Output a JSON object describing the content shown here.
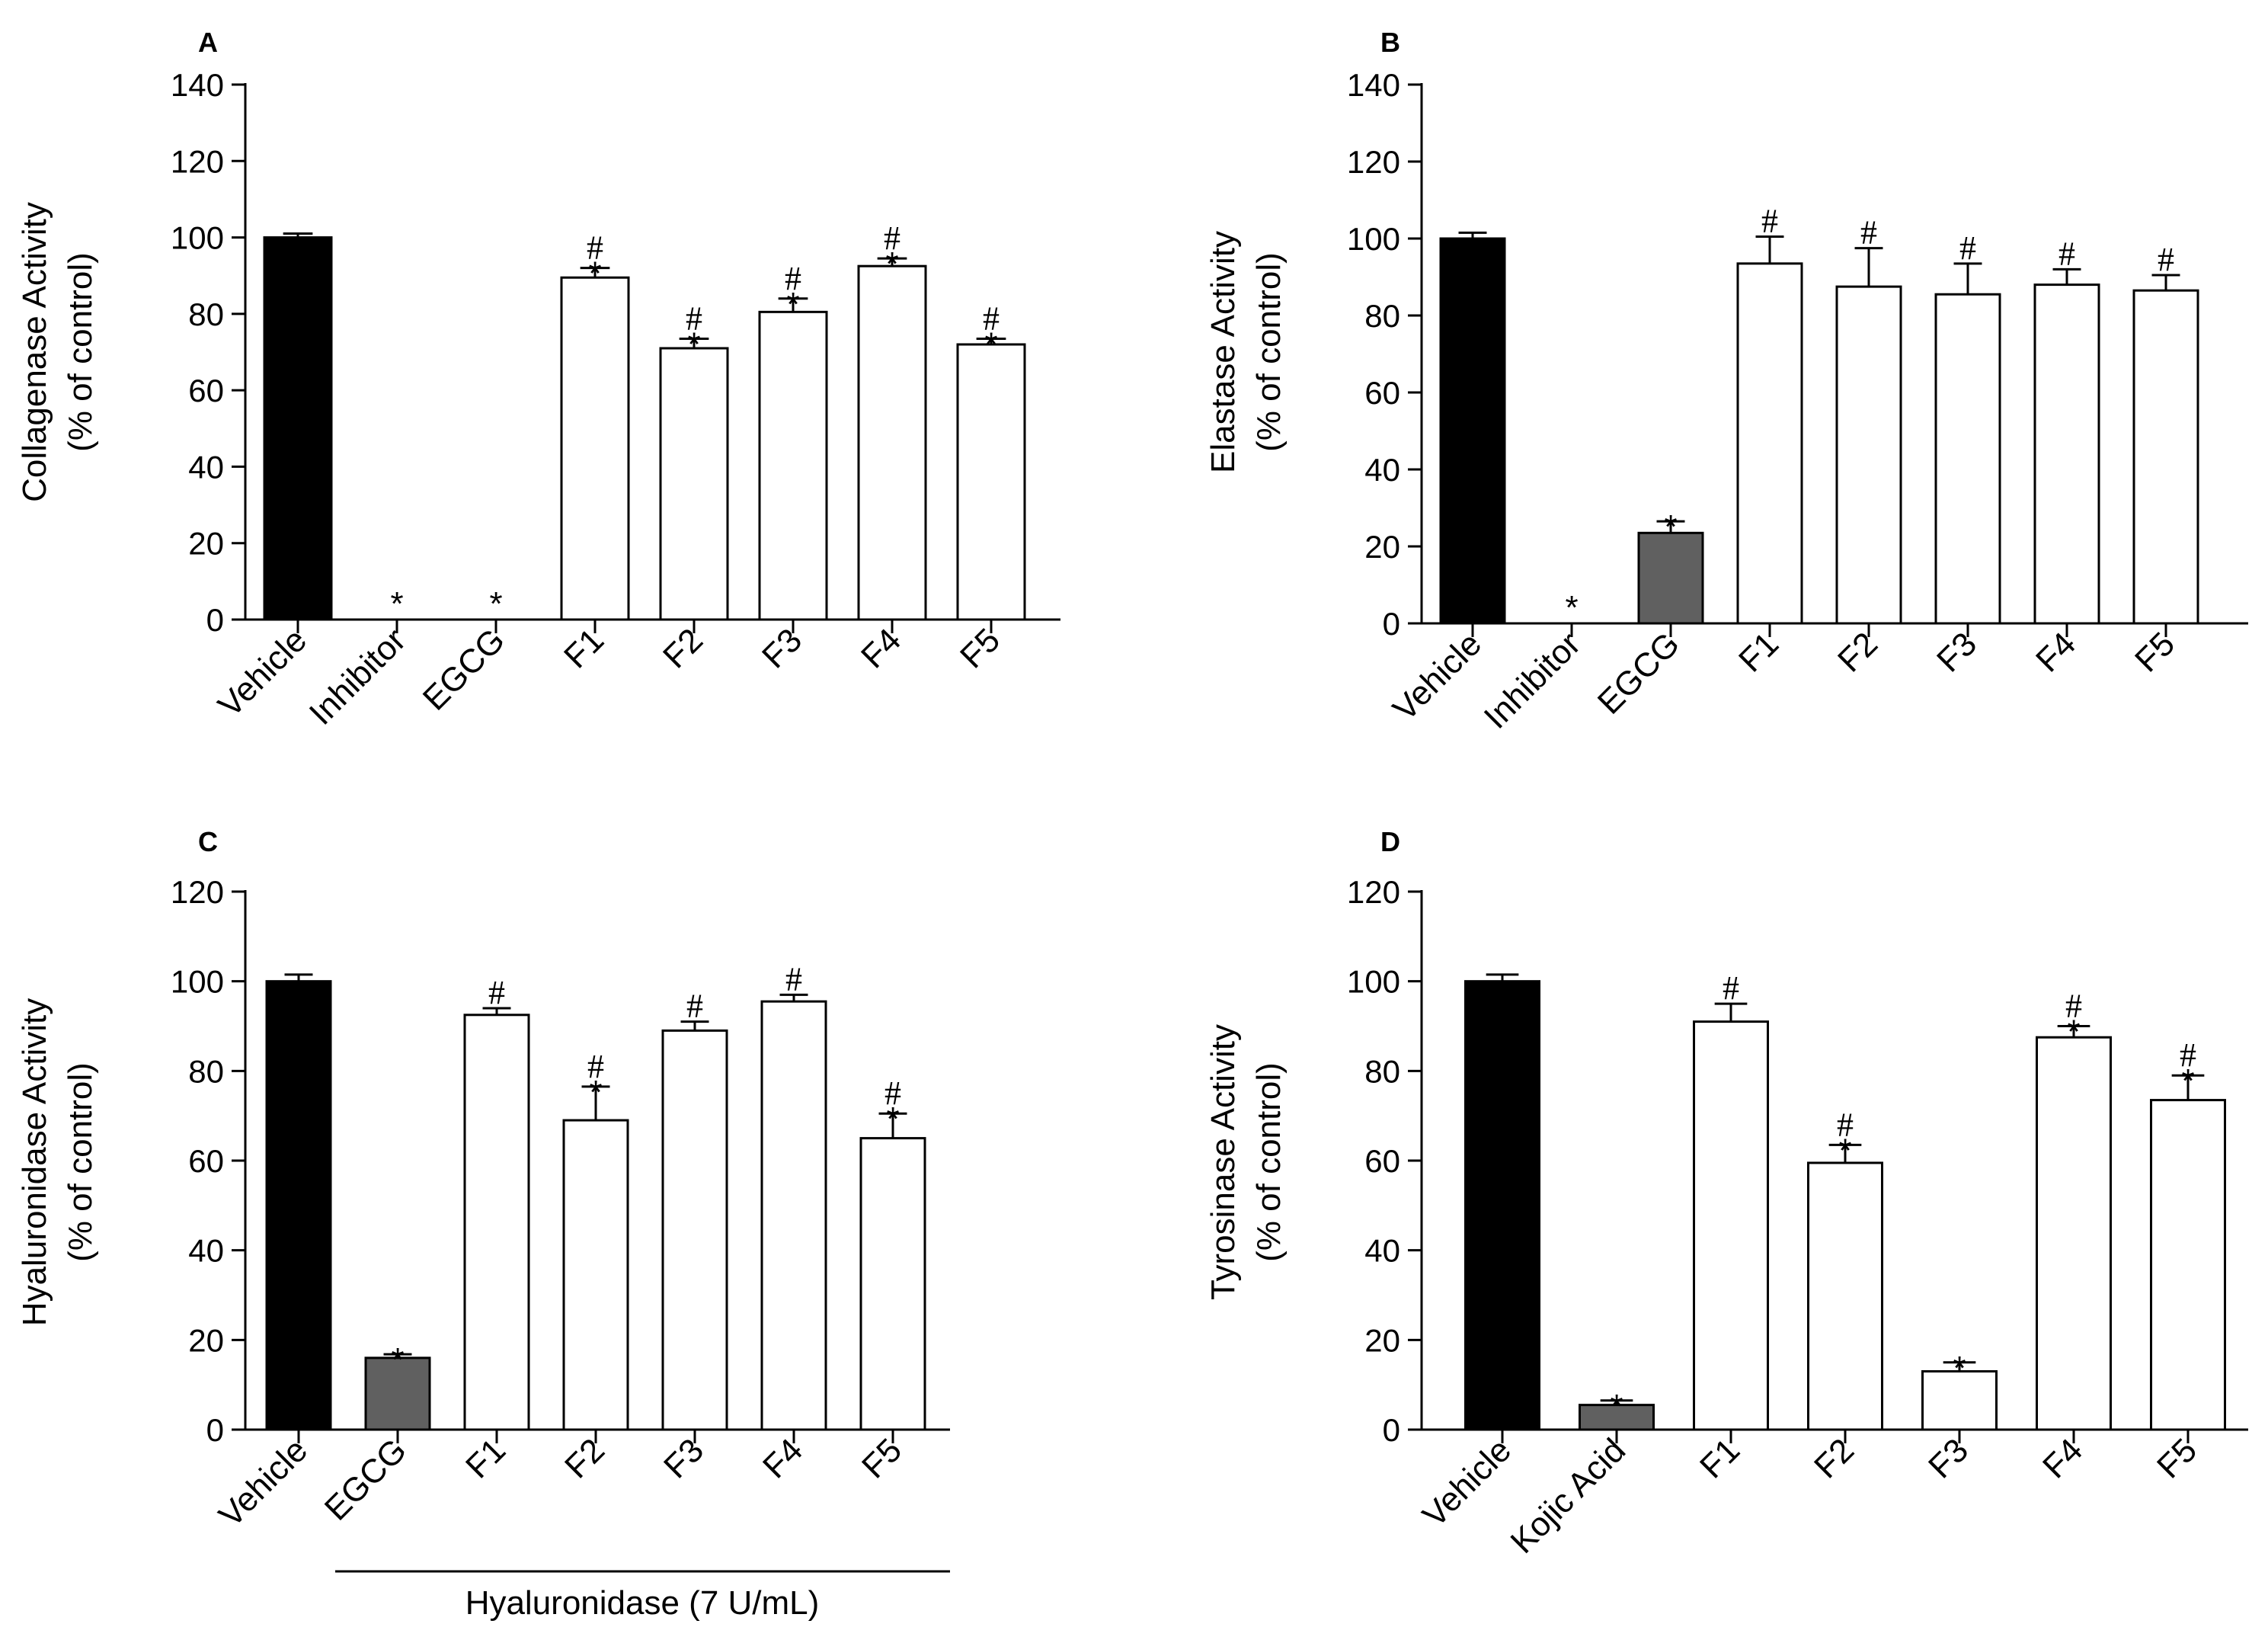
{
  "chart_data": [
    {
      "panel": "A",
      "type": "bar",
      "ylabel": "Collagenase Activity",
      "ylabel2": "(% of control)",
      "ylim": [
        0,
        140
      ],
      "yticks": [
        0,
        20,
        40,
        60,
        80,
        100,
        120,
        140
      ],
      "bracket_label": "",
      "bars": [
        {
          "category": "Vehicle",
          "value": 100,
          "error": 1,
          "fill": "black",
          "star": false,
          "hash": false
        },
        {
          "category": "Inhibitor",
          "value": 0,
          "error": 0,
          "fill": "white",
          "star": true,
          "hash": false
        },
        {
          "category": "EGCG",
          "value": 0,
          "error": 0,
          "fill": "white",
          "star": true,
          "hash": false
        },
        {
          "category": "F1",
          "value": 89.5,
          "error": 2.5,
          "fill": "white",
          "star": true,
          "hash": true
        },
        {
          "category": "F2",
          "value": 71,
          "error": 2.5,
          "fill": "white",
          "star": true,
          "hash": true
        },
        {
          "category": "F3",
          "value": 80.5,
          "error": 3.5,
          "fill": "white",
          "star": true,
          "hash": true
        },
        {
          "category": "F4",
          "value": 92.5,
          "error": 2,
          "fill": "white",
          "star": true,
          "hash": true
        },
        {
          "category": "F5",
          "value": 72,
          "error": 1.5,
          "fill": "white",
          "star": true,
          "hash": true
        }
      ]
    },
    {
      "panel": "B",
      "type": "bar",
      "ylabel": "Elastase Activity",
      "ylabel2": "(% of control)",
      "ylim": [
        0,
        140
      ],
      "yticks": [
        0,
        20,
        40,
        60,
        80,
        100,
        120,
        140
      ],
      "bracket_label": "",
      "bars": [
        {
          "category": "Vehicle",
          "value": 100,
          "error": 1.5,
          "fill": "black",
          "star": false,
          "hash": false
        },
        {
          "category": "Inhibitor",
          "value": 0,
          "error": 0,
          "fill": "white",
          "star": true,
          "hash": false
        },
        {
          "category": "EGCG",
          "value": 23.5,
          "error": 3,
          "fill": "gray",
          "star": true,
          "hash": false
        },
        {
          "category": "F1",
          "value": 93.5,
          "error": 7,
          "fill": "white",
          "star": false,
          "hash": true
        },
        {
          "category": "F2",
          "value": 87.5,
          "error": 10,
          "fill": "white",
          "star": false,
          "hash": true
        },
        {
          "category": "F3",
          "value": 85.5,
          "error": 8,
          "fill": "white",
          "star": false,
          "hash": true
        },
        {
          "category": "F4",
          "value": 88,
          "error": 4,
          "fill": "white",
          "star": false,
          "hash": true
        },
        {
          "category": "F5",
          "value": 86.5,
          "error": 4,
          "fill": "white",
          "star": false,
          "hash": true
        }
      ]
    },
    {
      "panel": "C",
      "type": "bar",
      "ylabel": "Hyaluronidase Activity",
      "ylabel2": "(% of control)",
      "ylim": [
        0,
        120
      ],
      "yticks": [
        0,
        20,
        40,
        60,
        80,
        100,
        120
      ],
      "bracket_label": "Hyaluronidase (7 U/mL)",
      "bars": [
        {
          "category": "Vehicle",
          "value": 100,
          "error": 1.5,
          "fill": "black",
          "star": false,
          "hash": false
        },
        {
          "category": "EGCG",
          "value": 16,
          "error": 0.8,
          "fill": "gray",
          "star": true,
          "hash": false
        },
        {
          "category": "F1",
          "value": 92.5,
          "error": 1.5,
          "fill": "white",
          "star": false,
          "hash": true
        },
        {
          "category": "F2",
          "value": 69,
          "error": 7.5,
          "fill": "white",
          "star": true,
          "hash": true
        },
        {
          "category": "F3",
          "value": 89,
          "error": 2,
          "fill": "white",
          "star": false,
          "hash": true
        },
        {
          "category": "F4",
          "value": 95.5,
          "error": 1.5,
          "fill": "white",
          "star": false,
          "hash": true
        },
        {
          "category": "F5",
          "value": 65,
          "error": 5.5,
          "fill": "white",
          "star": true,
          "hash": true
        }
      ]
    },
    {
      "panel": "D",
      "type": "bar",
      "ylabel": "Tyrosinase Activity",
      "ylabel2": "(% of control)",
      "ylim": [
        0,
        120
      ],
      "yticks": [
        0,
        20,
        40,
        60,
        80,
        100,
        120
      ],
      "bracket_label": "",
      "bars": [
        {
          "category": "Vehicle",
          "value": 100,
          "error": 1.5,
          "fill": "black",
          "star": false,
          "hash": false
        },
        {
          "category": "Kojic Acid",
          "value": 5.5,
          "error": 1,
          "fill": "gray",
          "star": true,
          "hash": false
        },
        {
          "category": "F1",
          "value": 91,
          "error": 4,
          "fill": "white",
          "star": false,
          "hash": true
        },
        {
          "category": "F2",
          "value": 59.5,
          "error": 4,
          "fill": "white",
          "star": true,
          "hash": true
        },
        {
          "category": "F3",
          "value": 13,
          "error": 2,
          "fill": "white",
          "star": true,
          "hash": false
        },
        {
          "category": "F4",
          "value": 87.5,
          "error": 2.5,
          "fill": "white",
          "star": true,
          "hash": true
        },
        {
          "category": "F5",
          "value": 73.5,
          "error": 5.5,
          "fill": "white",
          "star": true,
          "hash": true
        }
      ]
    }
  ],
  "symbols": {
    "star": "*",
    "hash": "#"
  },
  "colors": {
    "black": "#000000",
    "gray": "#606060",
    "white": "#ffffff",
    "axis": "#000000"
  }
}
